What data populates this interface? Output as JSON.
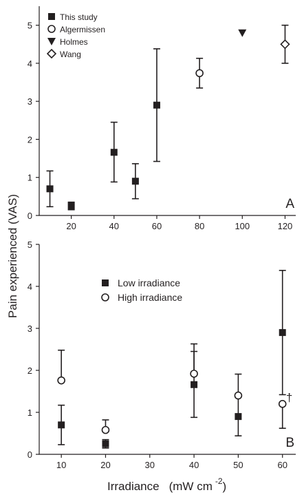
{
  "chart_data": [
    {
      "type": "scatter",
      "panel_label": "A",
      "xlim": [
        5,
        125
      ],
      "ylim": [
        0,
        5.5
      ],
      "xticks": [
        20,
        40,
        60,
        80,
        100,
        120
      ],
      "yticks": [
        0,
        1,
        2,
        3,
        4,
        5
      ],
      "legend_position": "top-left",
      "series": [
        {
          "name": "This study",
          "marker": "filled-square",
          "points": [
            {
              "x": 10,
              "y": 0.7,
              "lo": 0.23,
              "hi": 1.17
            },
            {
              "x": 20,
              "y": 0.25,
              "lo": 0.15,
              "hi": 0.35
            },
            {
              "x": 40,
              "y": 1.66,
              "lo": 0.88,
              "hi": 2.45
            },
            {
              "x": 50,
              "y": 0.9,
              "lo": 0.44,
              "hi": 1.36
            },
            {
              "x": 60,
              "y": 2.9,
              "lo": 1.42,
              "hi": 4.38
            }
          ]
        },
        {
          "name": "Algermissen",
          "marker": "open-circle",
          "points": [
            {
              "x": 80,
              "y": 3.74,
              "lo": 3.35,
              "hi": 4.13
            }
          ]
        },
        {
          "name": "Holmes",
          "marker": "filled-triangle-down",
          "points": [
            {
              "x": 100,
              "y": 4.8
            }
          ]
        },
        {
          "name": "Wang",
          "marker": "open-diamond",
          "points": [
            {
              "x": 120,
              "y": 4.5,
              "lo": 4.0,
              "hi": 5.0
            }
          ]
        }
      ]
    },
    {
      "type": "scatter",
      "panel_label": "B",
      "xlim": [
        5,
        63
      ],
      "ylim": [
        0,
        5
      ],
      "xticks": [
        10,
        20,
        30,
        40,
        50,
        60
      ],
      "yticks": [
        0,
        1,
        2,
        3,
        4,
        5
      ],
      "xlabel": "Irradiance",
      "xlabel_unit": "(mW cm",
      "xlabel_exponent": "-2",
      "xlabel_close": ")",
      "legend_position": "top-left",
      "annotation": {
        "text": "†",
        "x": 60.5,
        "y": 1.2
      },
      "series": [
        {
          "name": "Low irradiance",
          "marker": "filled-square",
          "points": [
            {
              "x": 10,
              "y": 0.7,
              "lo": 0.23,
              "hi": 1.17
            },
            {
              "x": 20,
              "y": 0.25,
              "lo": 0.15,
              "hi": 0.35
            },
            {
              "x": 40,
              "y": 1.66,
              "lo": 0.88,
              "hi": 2.45
            },
            {
              "x": 50,
              "y": 0.9,
              "lo": 0.44,
              "hi": 1.36
            },
            {
              "x": 60,
              "y": 2.9,
              "lo": 1.42,
              "hi": 4.38
            }
          ]
        },
        {
          "name": "High irradiance",
          "marker": "open-circle",
          "points": [
            {
              "x": 10,
              "y": 1.76,
              "lo": 1.76,
              "hi": 2.48
            },
            {
              "x": 20,
              "y": 0.58,
              "lo": 0.58,
              "hi": 0.82
            },
            {
              "x": 40,
              "y": 1.92,
              "lo": 1.92,
              "hi": 2.63
            },
            {
              "x": 50,
              "y": 1.4,
              "lo": 1.4,
              "hi": 1.91
            },
            {
              "x": 60,
              "y": 1.2,
              "lo": 0.62,
              "hi": 1.2
            }
          ]
        }
      ]
    }
  ],
  "shared_ylabel": "Pain experienced (VAS)",
  "colors": {
    "ink": "#231f20",
    "background": "#ffffff"
  }
}
